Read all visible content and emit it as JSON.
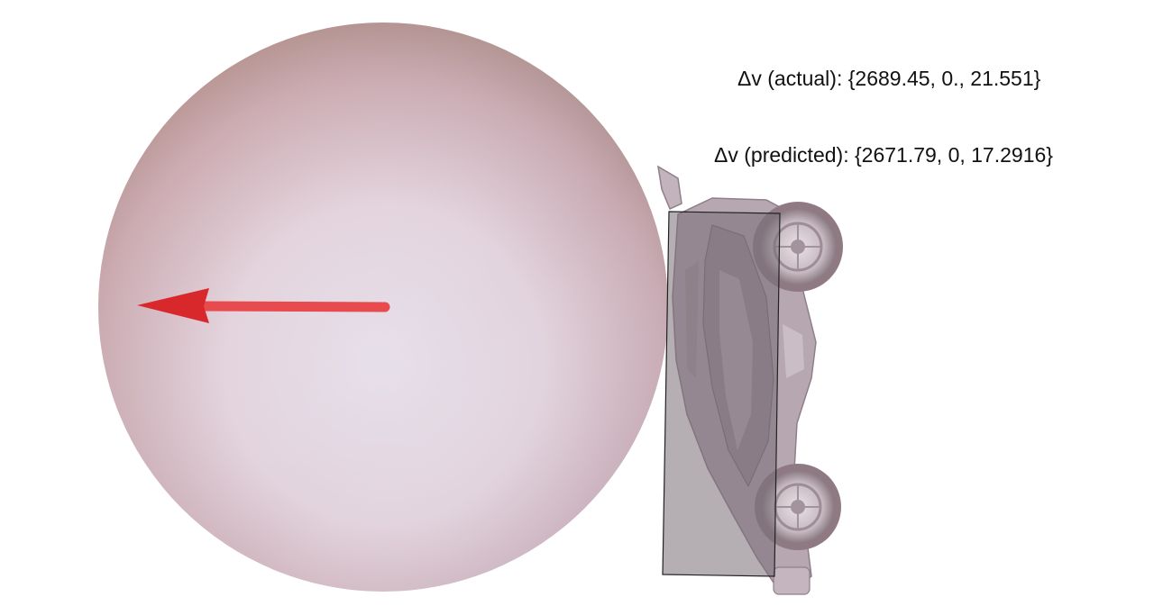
{
  "annotations": {
    "actual": "Δv (actual): {2689.45, 0., 21.551}",
    "predicted": "Δv (predicted): {2671.79, 0, 17.2916}"
  },
  "scene": {
    "ball_color": "#e7dbe6",
    "arrow_color": "#e03a3d",
    "car_body_color": "#b6a9b2",
    "hitbox_fill": "rgba(120,110,118,0.55)",
    "hitbox_stroke": "#222222"
  }
}
